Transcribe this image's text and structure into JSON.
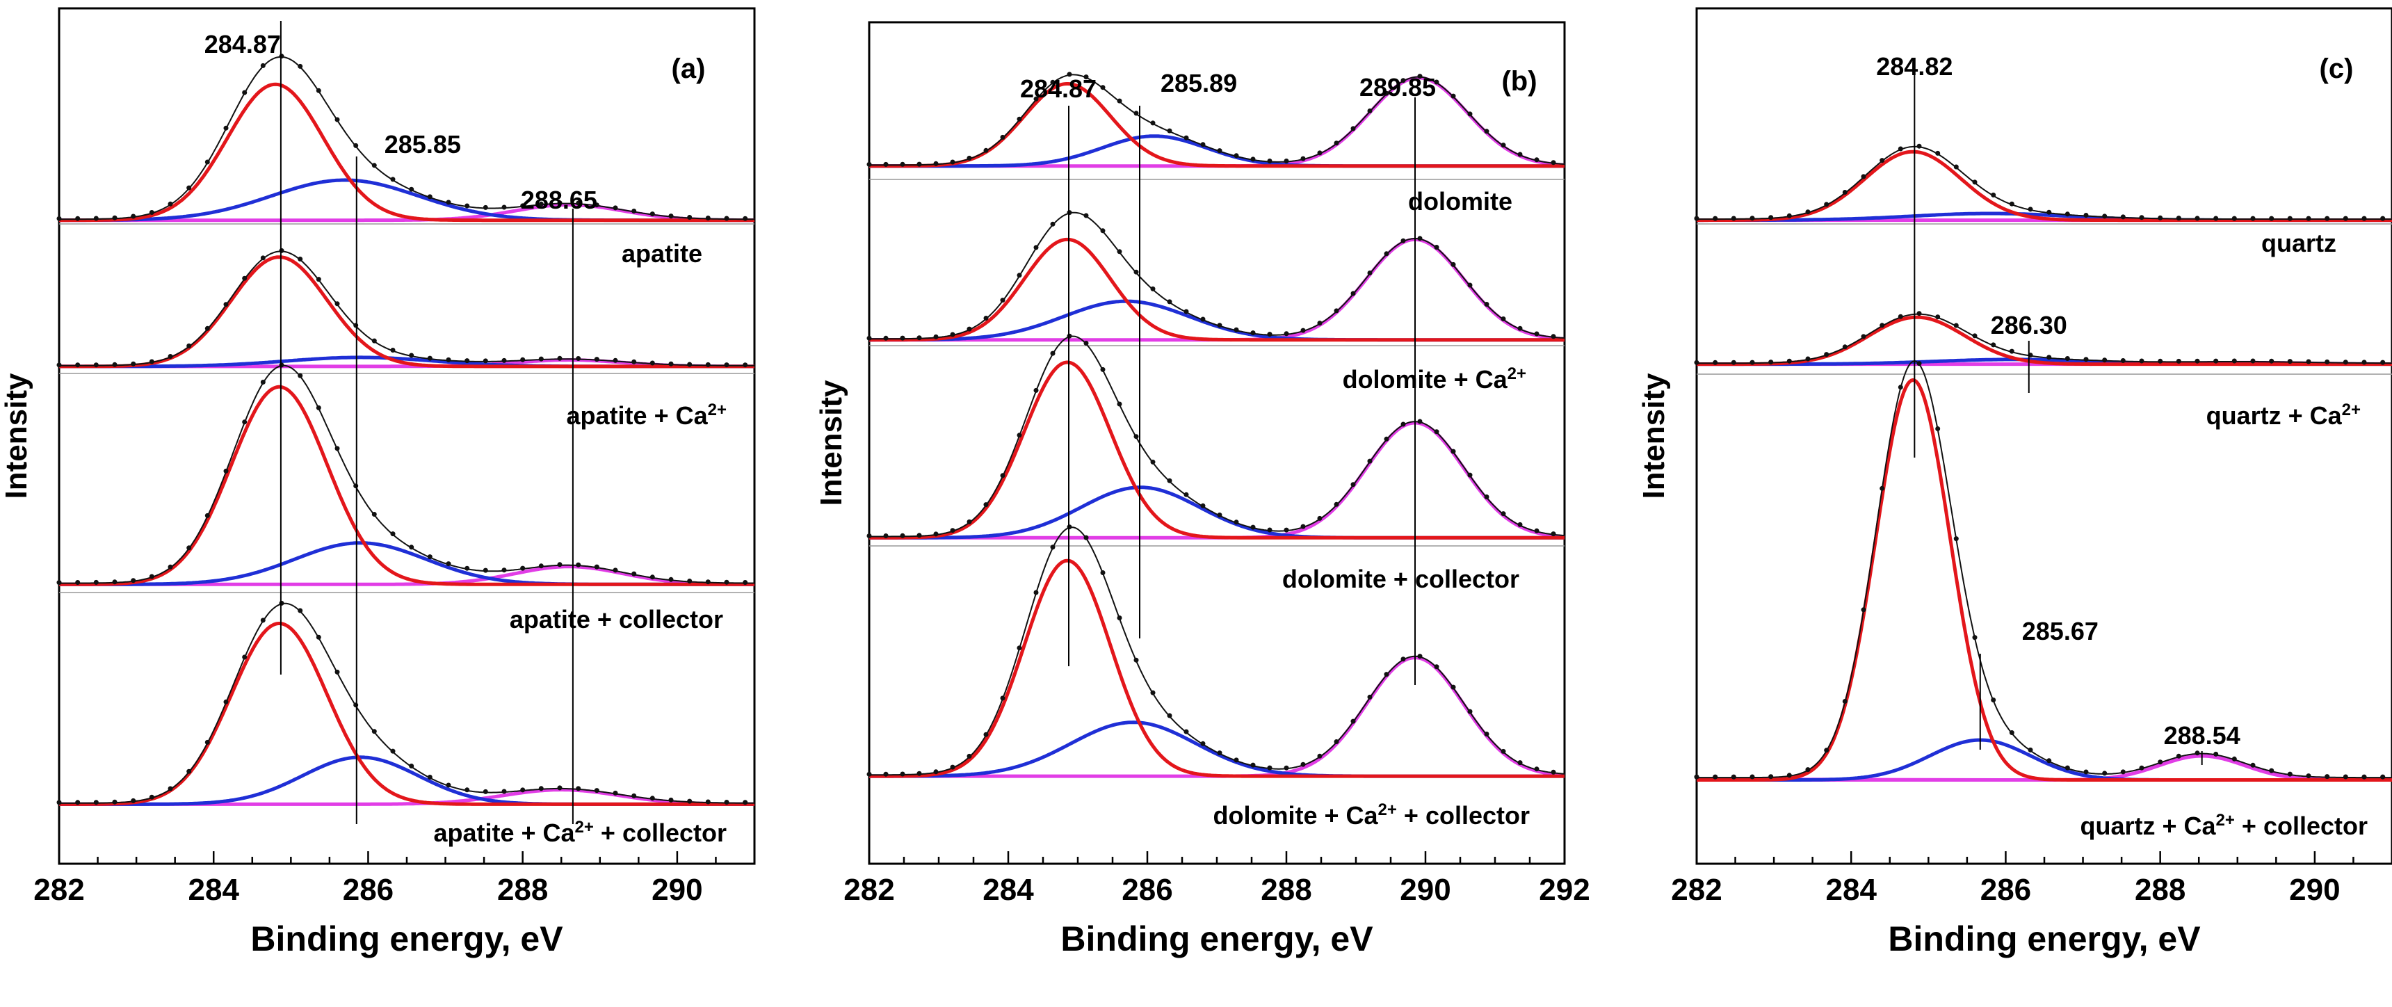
{
  "chart_data": [
    {
      "type": "line",
      "panel": "(a)",
      "xlabel": "Binding energy, eV",
      "ylabel": "Intensity",
      "xlim": [
        282,
        291
      ],
      "xticks": [
        282,
        284,
        286,
        288,
        290
      ],
      "ref_lines": [
        {
          "x": 284.87,
          "label": "284.87"
        },
        {
          "x": 285.85,
          "label": "285.85"
        },
        {
          "x": 288.65,
          "label": "288.65"
        }
      ],
      "spectra": [
        {
          "label": "apatite",
          "peaks": [
            {
              "center": 284.8,
              "height": 0.88,
              "sigma": 0.62
            },
            {
              "center": 285.7,
              "height": 0.26,
              "sigma": 0.95
            },
            {
              "center": 288.6,
              "height": 0.1,
              "sigma": 0.7
            }
          ]
        },
        {
          "label": "apatite + Ca2+",
          "peaks": [
            {
              "center": 284.85,
              "height": 0.85,
              "sigma": 0.62
            },
            {
              "center": 285.9,
              "height": 0.07,
              "sigma": 0.95
            },
            {
              "center": 288.6,
              "height": 0.05,
              "sigma": 0.7
            }
          ]
        },
        {
          "label": "apatite + collector",
          "peaks": [
            {
              "center": 284.85,
              "height": 1.0,
              "sigma": 0.62
            },
            {
              "center": 285.9,
              "height": 0.21,
              "sigma": 0.85
            },
            {
              "center": 288.6,
              "height": 0.09,
              "sigma": 0.7
            }
          ]
        },
        {
          "label": "apatite + Ca2+ + collector",
          "peaks": [
            {
              "center": 284.85,
              "height": 1.0,
              "sigma": 0.62
            },
            {
              "center": 285.9,
              "height": 0.26,
              "sigma": 0.75
            },
            {
              "center": 288.5,
              "height": 0.08,
              "sigma": 0.75
            }
          ]
        }
      ]
    },
    {
      "type": "line",
      "panel": "(b)",
      "xlabel": "Binding energy, eV",
      "ylabel": "Intensity",
      "xlim": [
        282,
        292
      ],
      "xticks": [
        282,
        284,
        286,
        288,
        290,
        292
      ],
      "ref_lines": [
        {
          "x": 284.87,
          "label": "284.87"
        },
        {
          "x": 285.89,
          "label": "285.89"
        },
        {
          "x": 289.85,
          "label": "289.85"
        }
      ],
      "spectra": [
        {
          "label": "dolomite",
          "peaks": [
            {
              "center": 284.85,
              "height": 0.55,
              "sigma": 0.62
            },
            {
              "center": 286.1,
              "height": 0.2,
              "sigma": 0.75
            },
            {
              "center": 289.9,
              "height": 0.59,
              "sigma": 0.7
            }
          ]
        },
        {
          "label": "dolomite + Ca2+",
          "peaks": [
            {
              "center": 284.85,
              "height": 0.65,
              "sigma": 0.62
            },
            {
              "center": 285.7,
              "height": 0.25,
              "sigma": 0.9
            },
            {
              "center": 289.85,
              "height": 0.65,
              "sigma": 0.7
            }
          ]
        },
        {
          "label": "dolomite + collector",
          "peaks": [
            {
              "center": 284.85,
              "height": 0.87,
              "sigma": 0.62
            },
            {
              "center": 285.9,
              "height": 0.25,
              "sigma": 0.85
            },
            {
              "center": 289.85,
              "height": 0.57,
              "sigma": 0.7
            }
          ]
        },
        {
          "label": "dolomite + Ca2+ + collector",
          "peaks": [
            {
              "center": 284.85,
              "height": 1.0,
              "sigma": 0.62
            },
            {
              "center": 285.8,
              "height": 0.25,
              "sigma": 0.9
            },
            {
              "center": 289.85,
              "height": 0.55,
              "sigma": 0.7
            }
          ]
        }
      ]
    },
    {
      "type": "line",
      "panel": "(c)",
      "xlabel": "Binding energy, eV",
      "ylabel": "Intensity",
      "xlim": [
        282,
        291
      ],
      "xticks": [
        282,
        284,
        286,
        288,
        290
      ],
      "ref_lines": [
        {
          "x": 284.82,
          "label": "284.82"
        },
        {
          "x": 286.3,
          "label": "286.30"
        },
        {
          "x": 285.67,
          "label": "285.67"
        },
        {
          "x": 288.54,
          "label": "288.54"
        }
      ],
      "spectra": [
        {
          "label": "quartz",
          "peaks": [
            {
              "center": 284.8,
              "height": 0.41,
              "sigma": 0.62
            },
            {
              "center": 285.8,
              "height": 0.04,
              "sigma": 1.0
            },
            {
              "center": 288.6,
              "height": 0.0,
              "sigma": 0.7
            }
          ]
        },
        {
          "label": "quartz + Ca2+",
          "peaks": [
            {
              "center": 284.85,
              "height": 0.3,
              "sigma": 0.62
            },
            {
              "center": 286.1,
              "height": 0.03,
              "sigma": 1.0
            },
            {
              "center": 289.1,
              "height": 0.01,
              "sigma": 0.8
            }
          ]
        },
        {
          "label": "quartz + Ca2+ + collector",
          "peaks": [
            {
              "center": 284.8,
              "height": 1.0,
              "sigma": 0.48
            },
            {
              "center": 285.67,
              "height": 0.1,
              "sigma": 0.65
            },
            {
              "center": 288.54,
              "height": 0.06,
              "sigma": 0.55
            }
          ]
        }
      ]
    }
  ]
}
